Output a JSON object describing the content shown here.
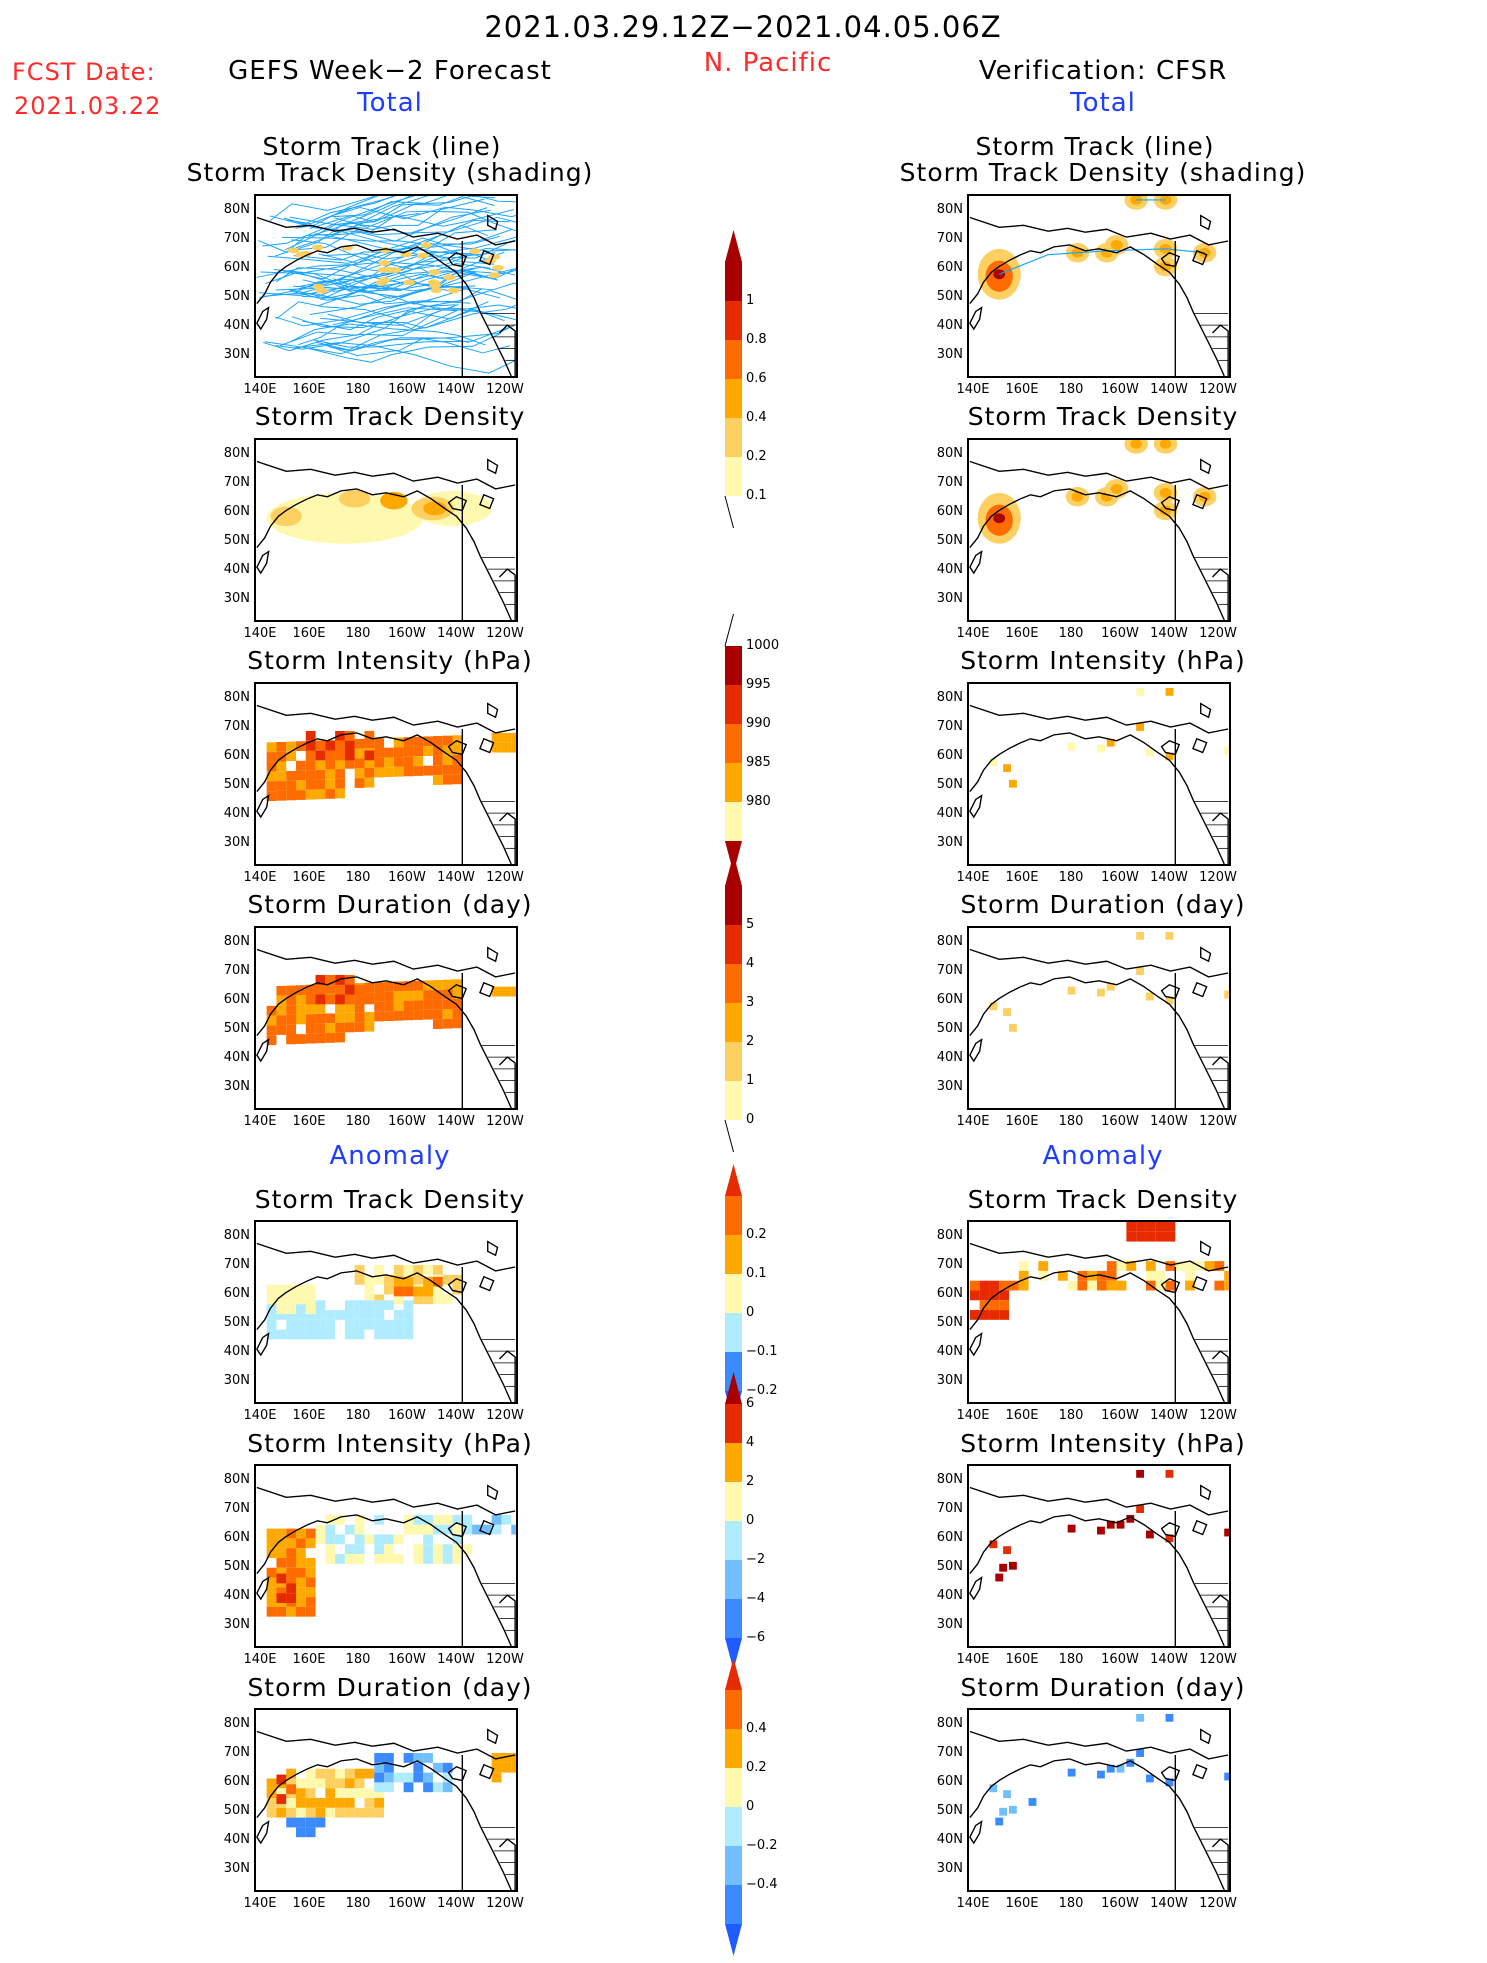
{
  "header": {
    "date_range": "2021.03.29.12Z−2021.04.05.06Z",
    "region": "N. Pacific",
    "fcst_label": "FCST Date:",
    "fcst_date": "2021.03.22",
    "left_title": "GEFS Week−2 Forecast",
    "right_title": "Verification: CFSR",
    "total_label": "Total",
    "anomaly_label": "Anomaly"
  },
  "panel_titles": {
    "track_line": "Storm Track (line)",
    "track_shading": "Storm Track Density (shading)",
    "density": "Storm Track Density",
    "intensity": "Storm Intensity (hPa)",
    "duration": "Storm Duration (day)"
  },
  "axes": {
    "lat_labels": [
      "80N",
      "70N",
      "60N",
      "50N",
      "40N",
      "30N"
    ],
    "lon_labels": [
      "140E",
      "160E",
      "180",
      "160W",
      "140W",
      "120W"
    ]
  },
  "colors": {
    "light_yellow": "#fff9b0",
    "yellow": "#fed061",
    "orange": "#fea800",
    "dark_orange": "#fe6c00",
    "red": "#e62b00",
    "dark_red": "#a80000",
    "light_blue": "#b0ecff",
    "mid_blue": "#72bfff",
    "blue": "#3b8bff",
    "dark_blue": "#1f5cff",
    "track_line": "#1aa3ff"
  },
  "chart_data": [
    {
      "type": "heatmap",
      "id": "cbar-total-density",
      "legend_levels": [
        "0.1",
        "0.2",
        "0.4",
        "0.6",
        "0.8",
        "1"
      ]
    },
    {
      "type": "heatmap",
      "id": "cbar-total-intensity",
      "legend_levels": [
        "1000",
        "995",
        "990",
        "985",
        "980"
      ]
    },
    {
      "type": "heatmap",
      "id": "cbar-total-duration",
      "legend_levels": [
        "0",
        "1",
        "2",
        "3",
        "4",
        "5"
      ]
    },
    {
      "type": "heatmap",
      "id": "cbar-anom-density",
      "legend_levels": [
        "0.2",
        "0.1",
        "0",
        "−0.1",
        "−0.2"
      ]
    },
    {
      "type": "heatmap",
      "id": "cbar-anom-intensity",
      "legend_levels": [
        "6",
        "4",
        "2",
        "0",
        "−2",
        "−4",
        "−6"
      ]
    },
    {
      "type": "heatmap",
      "id": "cbar-anom-duration",
      "legend_levels": [
        "0.4",
        "0.2",
        "0",
        "−0.2",
        "−0.4"
      ]
    }
  ]
}
